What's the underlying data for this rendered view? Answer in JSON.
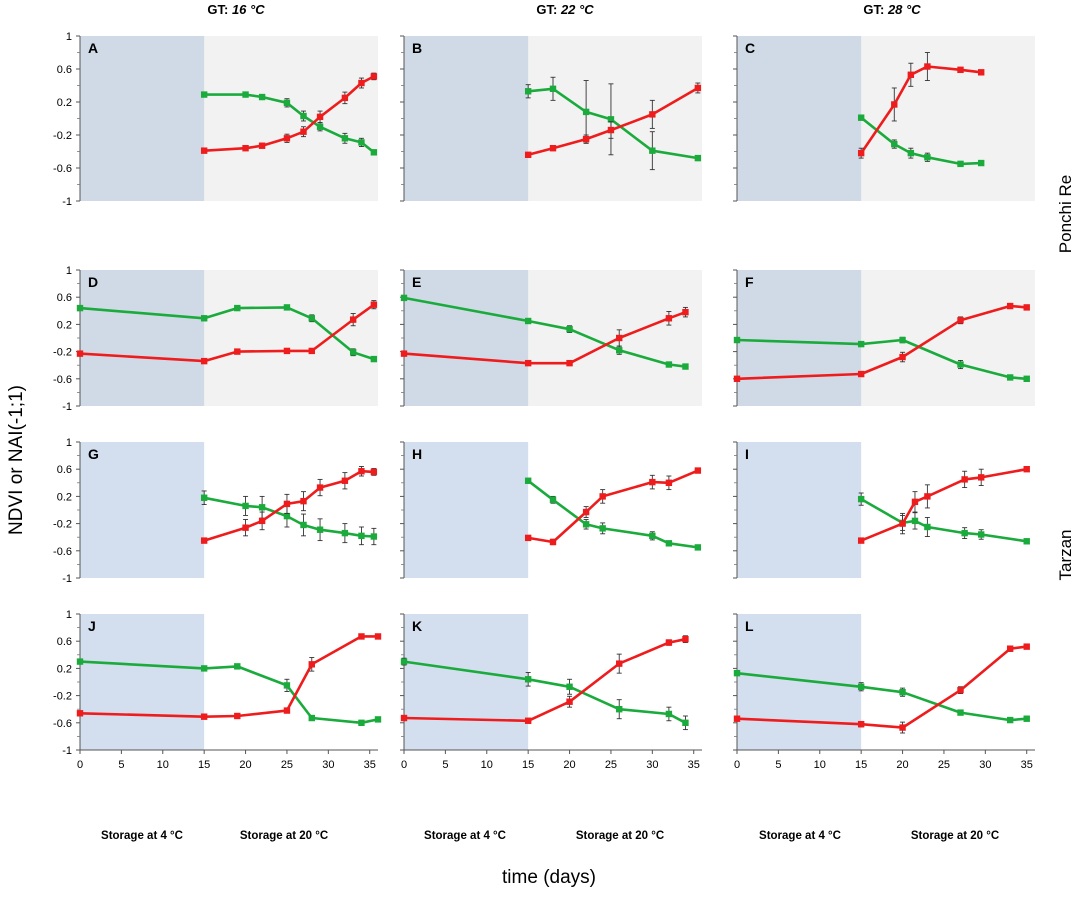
{
  "figure": {
    "column_headers": [
      {
        "prefix": "GT: ",
        "value": "16 °C"
      },
      {
        "prefix": "GT: ",
        "value": "22 °C"
      },
      {
        "prefix": "GT: ",
        "value": "28 °C"
      }
    ],
    "row_group_labels": [
      "Ponchi Re",
      "Tarzan"
    ],
    "ylabel": "NDVI or NAI(-1;1)",
    "xlabel": "time (days)",
    "storage_labels": [
      "Storage at 4 °C",
      "Storage at 20 °C"
    ],
    "y_ticks": [
      "1",
      "0.6",
      "0.2",
      "-0.2",
      "-0.6",
      "-1"
    ],
    "x_ticks": [
      "0",
      "5",
      "10",
      "15",
      "20",
      "25",
      "30",
      "35"
    ],
    "series_colors": {
      "NDVI": "#1aab3c",
      "NAI": "#ee1c1c"
    },
    "shade_colors": {
      "ponchi_cold": "#d0dae6",
      "ponchi_warm": "#f2f2f2",
      "tarzan_cold": "#d3deee",
      "tarzan_warm": "#ffffff"
    }
  },
  "chart_data": [
    {
      "type": "line",
      "panel": "A",
      "title": "A",
      "xlim": [
        0,
        36
      ],
      "ylim": [
        -1,
        1
      ],
      "cold_storage_end": 15,
      "series": [
        {
          "name": "NDVI",
          "x": [
            15,
            20,
            22,
            25,
            27,
            29,
            32,
            34,
            35.5
          ],
          "y": [
            0.29,
            0.29,
            0.26,
            0.19,
            0.03,
            -0.1,
            -0.24,
            -0.29,
            -0.41
          ],
          "err": [
            0.03,
            0.02,
            0.02,
            0.05,
            0.06,
            0.05,
            0.06,
            0.05,
            0.03
          ]
        },
        {
          "name": "NAI",
          "x": [
            15,
            20,
            22,
            25,
            27,
            29,
            32,
            34,
            35.5
          ],
          "y": [
            -0.39,
            -0.36,
            -0.33,
            -0.24,
            -0.16,
            0.02,
            0.25,
            0.43,
            0.51
          ],
          "err": [
            0.02,
            0.02,
            0.02,
            0.05,
            0.06,
            0.07,
            0.07,
            0.06,
            0.04
          ]
        }
      ]
    },
    {
      "type": "line",
      "panel": "B",
      "title": "B",
      "xlim": [
        0,
        36
      ],
      "ylim": [
        -1,
        1
      ],
      "cold_storage_end": 15,
      "series": [
        {
          "name": "NDVI",
          "x": [
            15,
            18,
            22,
            25,
            30,
            35.5
          ],
          "y": [
            0.33,
            0.36,
            0.08,
            -0.01,
            -0.39,
            -0.48
          ],
          "err": [
            0.08,
            0.14,
            0.38,
            0.43,
            0.23,
            0.03
          ]
        },
        {
          "name": "NAI",
          "x": [
            15,
            18,
            22,
            25,
            30,
            35.5
          ],
          "y": [
            -0.44,
            -0.36,
            -0.25,
            -0.14,
            0.05,
            0.37
          ],
          "err": [
            0.02,
            0.02,
            0.05,
            0.1,
            0.17,
            0.06
          ]
        }
      ]
    },
    {
      "type": "line",
      "panel": "C",
      "title": "C",
      "xlim": [
        0,
        36
      ],
      "ylim": [
        -1,
        1
      ],
      "cold_storage_end": 15,
      "series": [
        {
          "name": "NDVI",
          "x": [
            15,
            19,
            21,
            23,
            27,
            29.5
          ],
          "y": [
            0.01,
            -0.31,
            -0.42,
            -0.47,
            -0.55,
            -0.54
          ],
          "err": [
            0.03,
            0.05,
            0.06,
            0.05,
            0.03,
            0.02
          ]
        },
        {
          "name": "NAI",
          "x": [
            15,
            19,
            21,
            23,
            27,
            29.5
          ],
          "y": [
            -0.42,
            0.17,
            0.53,
            0.63,
            0.59,
            0.56
          ],
          "err": [
            0.06,
            0.2,
            0.14,
            0.17,
            0.03,
            0.02
          ]
        }
      ]
    },
    {
      "type": "line",
      "panel": "D",
      "title": "D",
      "xlim": [
        0,
        36
      ],
      "ylim": [
        -1,
        1
      ],
      "cold_storage_end": 15,
      "series": [
        {
          "name": "NDVI",
          "x": [
            0,
            15,
            19,
            25,
            28,
            33,
            35.5
          ],
          "y": [
            0.44,
            0.29,
            0.44,
            0.45,
            0.29,
            -0.21,
            -0.31
          ],
          "err": [
            0.02,
            0.02,
            0.02,
            0.02,
            0.05,
            0.05,
            0.03
          ]
        },
        {
          "name": "NAI",
          "x": [
            0,
            15,
            19,
            25,
            28,
            33,
            35.5
          ],
          "y": [
            -0.23,
            -0.34,
            -0.2,
            -0.19,
            -0.19,
            0.27,
            0.49
          ],
          "err": [
            0.02,
            0.02,
            0.02,
            0.02,
            0.02,
            0.09,
            0.06
          ]
        }
      ]
    },
    {
      "type": "line",
      "panel": "E",
      "title": "E",
      "xlim": [
        0,
        36
      ],
      "ylim": [
        -1,
        1
      ],
      "cold_storage_end": 15,
      "series": [
        {
          "name": "NDVI",
          "x": [
            0,
            15,
            20,
            26,
            32,
            34
          ],
          "y": [
            0.59,
            0.25,
            0.13,
            -0.18,
            -0.39,
            -0.42
          ],
          "err": [
            0.02,
            0.02,
            0.05,
            0.06,
            0.02,
            0.03
          ]
        },
        {
          "name": "NAI",
          "x": [
            0,
            15,
            20,
            26,
            32,
            34
          ],
          "y": [
            -0.23,
            -0.37,
            -0.37,
            0.0,
            0.29,
            0.38
          ],
          "err": [
            0.02,
            0.02,
            0.02,
            0.12,
            0.1,
            0.07
          ]
        }
      ]
    },
    {
      "type": "line",
      "panel": "F",
      "title": "F",
      "xlim": [
        0,
        36
      ],
      "ylim": [
        -1,
        1
      ],
      "cold_storage_end": 15,
      "series": [
        {
          "name": "NDVI",
          "x": [
            0,
            15,
            20,
            27,
            33,
            35
          ],
          "y": [
            -0.03,
            -0.09,
            -0.03,
            -0.39,
            -0.58,
            -0.6
          ],
          "err": [
            0.02,
            0.03,
            0.04,
            0.06,
            0.02,
            0.02
          ]
        },
        {
          "name": "NAI",
          "x": [
            0,
            15,
            20,
            27,
            33,
            35
          ],
          "y": [
            -0.6,
            -0.53,
            -0.28,
            0.26,
            0.47,
            0.45
          ],
          "err": [
            0.02,
            0.02,
            0.07,
            0.05,
            0.02,
            0.02
          ]
        }
      ]
    },
    {
      "type": "line",
      "panel": "G",
      "title": "G",
      "xlim": [
        0,
        36
      ],
      "ylim": [
        -1,
        1
      ],
      "cold_storage_end": 15,
      "series": [
        {
          "name": "NDVI",
          "x": [
            15,
            20,
            22,
            25,
            27,
            29,
            32,
            34,
            35.5
          ],
          "y": [
            0.18,
            0.06,
            0.04,
            -0.09,
            -0.22,
            -0.29,
            -0.34,
            -0.38,
            -0.39
          ],
          "err": [
            0.1,
            0.14,
            0.16,
            0.16,
            0.16,
            0.16,
            0.14,
            0.13,
            0.12
          ]
        },
        {
          "name": "NAI",
          "x": [
            15,
            20,
            22,
            25,
            27,
            29,
            32,
            34,
            35.5
          ],
          "y": [
            -0.45,
            -0.26,
            -0.16,
            0.09,
            0.13,
            0.33,
            0.43,
            0.57,
            0.56
          ],
          "err": [
            0.02,
            0.12,
            0.13,
            0.14,
            0.14,
            0.12,
            0.12,
            0.07,
            0.05
          ]
        }
      ]
    },
    {
      "type": "line",
      "panel": "H",
      "title": "H",
      "xlim": [
        0,
        36
      ],
      "ylim": [
        -1,
        1
      ],
      "cold_storage_end": 15,
      "series": [
        {
          "name": "NDVI",
          "x": [
            15,
            18,
            22,
            24,
            30,
            32,
            35.5
          ],
          "y": [
            0.43,
            0.15,
            -0.21,
            -0.27,
            -0.38,
            -0.49,
            -0.55
          ],
          "err": [
            0.02,
            0.05,
            0.07,
            0.08,
            0.06,
            0.03,
            0.02
          ]
        },
        {
          "name": "NAI",
          "x": [
            15,
            18,
            22,
            24,
            30,
            32,
            35.5
          ],
          "y": [
            -0.41,
            -0.47,
            -0.03,
            0.2,
            0.41,
            0.4,
            0.58
          ],
          "err": [
            0.02,
            0.04,
            0.08,
            0.1,
            0.1,
            0.1,
            0.03
          ]
        }
      ]
    },
    {
      "type": "line",
      "panel": "I",
      "title": "I",
      "xlim": [
        0,
        36
      ],
      "ylim": [
        -1,
        1
      ],
      "cold_storage_end": 15,
      "series": [
        {
          "name": "NDVI",
          "x": [
            15,
            20,
            21.5,
            23,
            27.5,
            29.5,
            35
          ],
          "y": [
            0.16,
            -0.19,
            -0.16,
            -0.25,
            -0.34,
            -0.36,
            -0.46
          ],
          "err": [
            0.09,
            0.11,
            0.12,
            0.14,
            0.08,
            0.07,
            0.02
          ]
        },
        {
          "name": "NAI",
          "x": [
            15,
            20,
            21.5,
            23,
            27.5,
            29.5,
            35
          ],
          "y": [
            -0.45,
            -0.2,
            0.12,
            0.2,
            0.45,
            0.48,
            0.6
          ],
          "err": [
            0.02,
            0.15,
            0.15,
            0.17,
            0.12,
            0.12,
            0.02
          ]
        }
      ]
    },
    {
      "type": "line",
      "panel": "J",
      "title": "J",
      "xlim": [
        0,
        36
      ],
      "ylim": [
        -1,
        1
      ],
      "cold_storage_end": 15,
      "series": [
        {
          "name": "NDVI",
          "x": [
            0,
            15,
            19,
            25,
            28,
            34,
            36
          ],
          "y": [
            0.3,
            0.2,
            0.23,
            -0.05,
            -0.53,
            -0.6,
            -0.55
          ],
          "err": [
            0.02,
            0.02,
            0.02,
            0.09,
            0.02,
            0.02,
            0.02
          ]
        },
        {
          "name": "NAI",
          "x": [
            0,
            15,
            19,
            25,
            28,
            34,
            36
          ],
          "y": [
            -0.46,
            -0.51,
            -0.5,
            -0.42,
            0.26,
            0.67,
            0.67
          ],
          "err": [
            0.02,
            0.02,
            0.02,
            0.02,
            0.1,
            0.02,
            0.02
          ]
        }
      ]
    },
    {
      "type": "line",
      "panel": "K",
      "title": "K",
      "xlim": [
        0,
        36
      ],
      "ylim": [
        -1,
        1
      ],
      "cold_storage_end": 15,
      "series": [
        {
          "name": "NDVI",
          "x": [
            0,
            15,
            20,
            26,
            32,
            34
          ],
          "y": [
            0.3,
            0.04,
            -0.07,
            -0.4,
            -0.47,
            -0.6
          ],
          "err": [
            0.05,
            0.1,
            0.11,
            0.14,
            0.1,
            0.1
          ]
        },
        {
          "name": "NAI",
          "x": [
            0,
            15,
            20,
            26,
            32,
            34
          ],
          "y": [
            -0.53,
            -0.57,
            -0.29,
            0.27,
            0.58,
            0.63
          ],
          "err": [
            0.02,
            0.02,
            0.08,
            0.14,
            0.04,
            0.05
          ]
        }
      ]
    },
    {
      "type": "line",
      "panel": "L",
      "title": "L",
      "xlim": [
        0,
        36
      ],
      "ylim": [
        -1,
        1
      ],
      "cold_storage_end": 15,
      "series": [
        {
          "name": "NDVI",
          "x": [
            0,
            15,
            20,
            27,
            33,
            35
          ],
          "y": [
            0.13,
            -0.07,
            -0.15,
            -0.45,
            -0.56,
            -0.54
          ],
          "err": [
            0.03,
            0.06,
            0.06,
            0.03,
            0.02,
            0.02
          ]
        },
        {
          "name": "NAI",
          "x": [
            0,
            15,
            20,
            27,
            33,
            35
          ],
          "y": [
            -0.54,
            -0.62,
            -0.67,
            -0.12,
            0.49,
            0.52
          ],
          "err": [
            0.02,
            0.04,
            0.08,
            0.05,
            0.04,
            0.02
          ]
        }
      ]
    }
  ]
}
